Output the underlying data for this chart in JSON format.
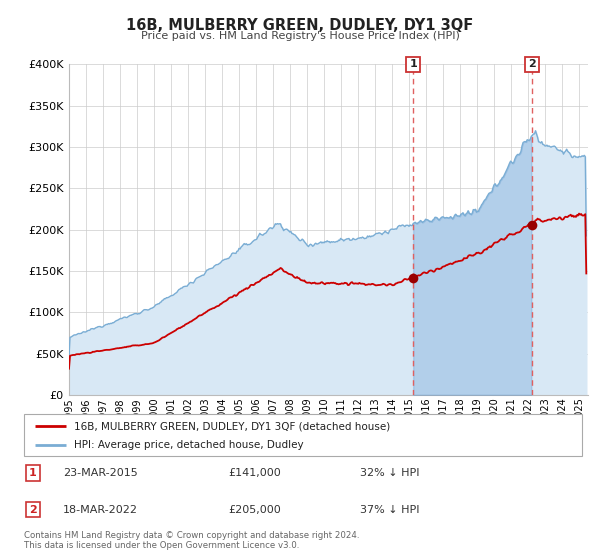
{
  "title": "16B, MULBERRY GREEN, DUDLEY, DY1 3QF",
  "subtitle": "Price paid vs. HM Land Registry's House Price Index (HPI)",
  "ylim": [
    0,
    400000
  ],
  "xlim_start": 1995.0,
  "xlim_end": 2025.5,
  "yticks": [
    0,
    50000,
    100000,
    150000,
    200000,
    250000,
    300000,
    350000,
    400000
  ],
  "ytick_labels": [
    "£0",
    "£50K",
    "£100K",
    "£150K",
    "£200K",
    "£250K",
    "£300K",
    "£350K",
    "£400K"
  ],
  "xtick_years": [
    1995,
    1996,
    1997,
    1998,
    1999,
    2000,
    2001,
    2002,
    2003,
    2004,
    2005,
    2006,
    2007,
    2008,
    2009,
    2010,
    2011,
    2012,
    2013,
    2014,
    2015,
    2016,
    2017,
    2018,
    2019,
    2020,
    2021,
    2022,
    2023,
    2024,
    2025
  ],
  "hpi_line_color": "#7aadd4",
  "hpi_fill_color": "#d8e8f5",
  "hpi_fill_alpha": 1.0,
  "price_color": "#cc0000",
  "marker_color": "#990000",
  "vline_color": "#e06060",
  "marker1_x": 2015.22,
  "marker1_y": 141000,
  "marker2_x": 2022.21,
  "marker2_y": 205000,
  "legend_label1": "16B, MULBERRY GREEN, DUDLEY, DY1 3QF (detached house)",
  "legend_label2": "HPI: Average price, detached house, Dudley",
  "annotation1_label": "1",
  "annotation1_date": "23-MAR-2015",
  "annotation1_price": "£141,000",
  "annotation1_pct": "32% ↓ HPI",
  "annotation2_label": "2",
  "annotation2_date": "18-MAR-2022",
  "annotation2_price": "£205,000",
  "annotation2_pct": "37% ↓ HPI",
  "footer1": "Contains HM Land Registry data © Crown copyright and database right 2024.",
  "footer2": "This data is licensed under the Open Government Licence v3.0.",
  "background_color": "#ffffff",
  "plot_bg_color": "#ffffff",
  "grid_color": "#cccccc"
}
